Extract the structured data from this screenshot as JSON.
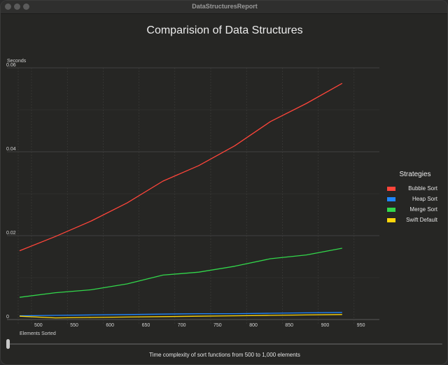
{
  "window": {
    "title": "DataStructuresReport"
  },
  "chart_data": {
    "type": "line",
    "title": "Comparision of Data Structures",
    "ylabel": "Seconds",
    "xlabel": "Elements Sorted",
    "x": [
      500,
      550,
      600,
      650,
      700,
      750,
      800,
      850,
      900,
      950
    ],
    "x_ticks": [
      "500",
      "550",
      "600",
      "650",
      "700",
      "750",
      "800",
      "850",
      "900",
      "950"
    ],
    "y_ticks": [
      "0",
      "0.02",
      "0.04",
      "0.06"
    ],
    "ylim": [
      0,
      0.06
    ],
    "grid": true,
    "legend_title": "Strategies",
    "legend_position": "right",
    "series": [
      {
        "name": "Bubble Sort",
        "color": "#ff453a",
        "values": [
          0.0164,
          0.0198,
          0.0235,
          0.0278,
          0.033,
          0.0367,
          0.0414,
          0.0472,
          0.0515,
          0.0563
        ]
      },
      {
        "name": "Heap Sort",
        "color": "#1f86ff",
        "values": [
          0.0009,
          0.001,
          0.0011,
          0.0012,
          0.0013,
          0.0014,
          0.0014,
          0.0015,
          0.0016,
          0.0017
        ]
      },
      {
        "name": "Merge Sort",
        "color": "#32d74b",
        "values": [
          0.0053,
          0.0064,
          0.0071,
          0.0085,
          0.0106,
          0.0113,
          0.0127,
          0.0145,
          0.0154,
          0.017
        ]
      },
      {
        "name": "Swift Default",
        "color": "#ffd60a",
        "values": [
          0.0008,
          0.0004,
          0.0005,
          0.0006,
          0.0007,
          0.0008,
          0.0009,
          0.001,
          0.0011,
          0.0012
        ]
      }
    ]
  },
  "slider": {
    "value": 0.0
  },
  "caption": "Time complexity of sort functions from 500 to 1,000 elements"
}
